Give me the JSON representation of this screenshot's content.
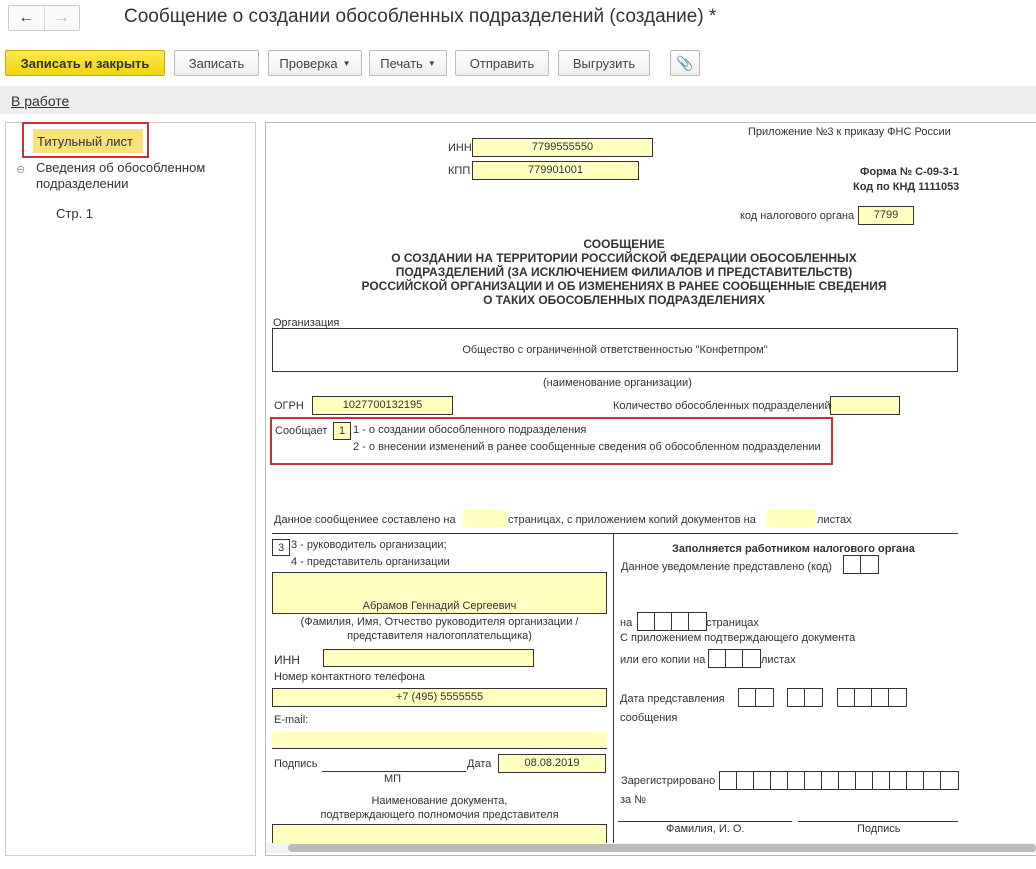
{
  "window": {
    "title": "Сообщение о создании обособленных подразделений (создание) *",
    "back_icon": "arrow-left",
    "forward_icon": "arrow-right"
  },
  "toolbar": {
    "save_close": "Записать и закрыть",
    "save": "Записать",
    "check": "Проверка",
    "print": "Печать",
    "send": "Отправить",
    "export": "Выгрузить",
    "attach_icon": "paperclip",
    "accent": "#f5d816"
  },
  "status": {
    "link": "В работе"
  },
  "tree": {
    "items": [
      {
        "label": "Титульный лист",
        "selected": true
      },
      {
        "label": "Сведения об обособленном подразделении",
        "expanded": true
      },
      {
        "label": "Стр. 1"
      }
    ]
  },
  "form": {
    "appendix": "Приложение №3 к приказу ФНС России",
    "inn_label": "ИНН",
    "inn": "7799555550",
    "kpp_label": "КПП",
    "kpp": "779901001",
    "form_no": "Форма № С-09-3-1",
    "knd": "Код по КНД 1111053",
    "tax_code_label": "код налогового органа",
    "tax_code": "7799",
    "heading": [
      "СООБЩЕНИЕ",
      "О СОЗДАНИИ НА ТЕРРИТОРИИ РОССИЙСКОЙ ФЕДЕРАЦИИ ОБОСОБЛЕННЫХ",
      "ПОДРАЗДЕЛЕНИЙ (ЗА ИСКЛЮЧЕНИЕМ ФИЛИАЛОВ И ПРЕДСТАВИТЕЛЬСТВ)",
      "РОССИЙСКОЙ ОРГАНИЗАЦИИ И ОБ ИЗМЕНЕНИЯХ В РАНЕЕ СООБЩЕННЫЕ СВЕДЕНИЯ",
      "О ТАКИХ ОБОСОБЛЕННЫХ ПОДРАЗДЕЛЕНИЯХ"
    ],
    "org_label": "Организация",
    "org": "Общество с ограниченной ответственностью \"Конфетпром\"",
    "org_caption": "(наименование организации)",
    "ogrn_label": "ОГРН",
    "ogrn": "1027700132195",
    "count_label": "Количество обособленных подразделений",
    "report_label": "Сообщает",
    "report_code": "1",
    "report_opt1": "1 - о создании обособленного подразделения",
    "report_opt2": "2 - о внесении изменений в ранее сообщенные сведения об обособленном подразделении",
    "pages_a": "Данное сообщениее составлено на",
    "pages_b": "страницах, с приложением копий документов на",
    "pages_c": "листах",
    "signer_code": "3",
    "signer_opt3": "3 - руководитель организации;",
    "signer_opt4": "4 - представитель организации",
    "signer_name": "Абрамов Геннадий Сергеевич",
    "signer_caption1": "(Фамилия, Имя, Отчество руководителя организации /",
    "signer_caption2": "представителя налогоплательщика)",
    "signer_inn_label": "ИНН",
    "phone_label": "Номер контактного телефона",
    "phone": "+7 (495) 5555555",
    "email_label": "E-mail:",
    "sign_label": "Подпись",
    "date_label": "Дата",
    "date": "08.08.2019",
    "mp": "МП",
    "doc_label1": "Наименование документа,",
    "doc_label2": "подтверждающего полномочия представителя",
    "tax": {
      "title": "Заполняется работником налогового органа",
      "submitted": "Данное уведомление представлено (код)",
      "on": "на",
      "pages": "страницах",
      "with_doc": "С приложением подтверждающего документа",
      "copies": "или его копии на",
      "sheets": "листах",
      "date1": "Дата представления",
      "date2": "сообщения",
      "reg1": "Зарегистрировано",
      "reg2": "за №",
      "fio": "Фамилия, И. О.",
      "sign": "Подпись"
    }
  }
}
